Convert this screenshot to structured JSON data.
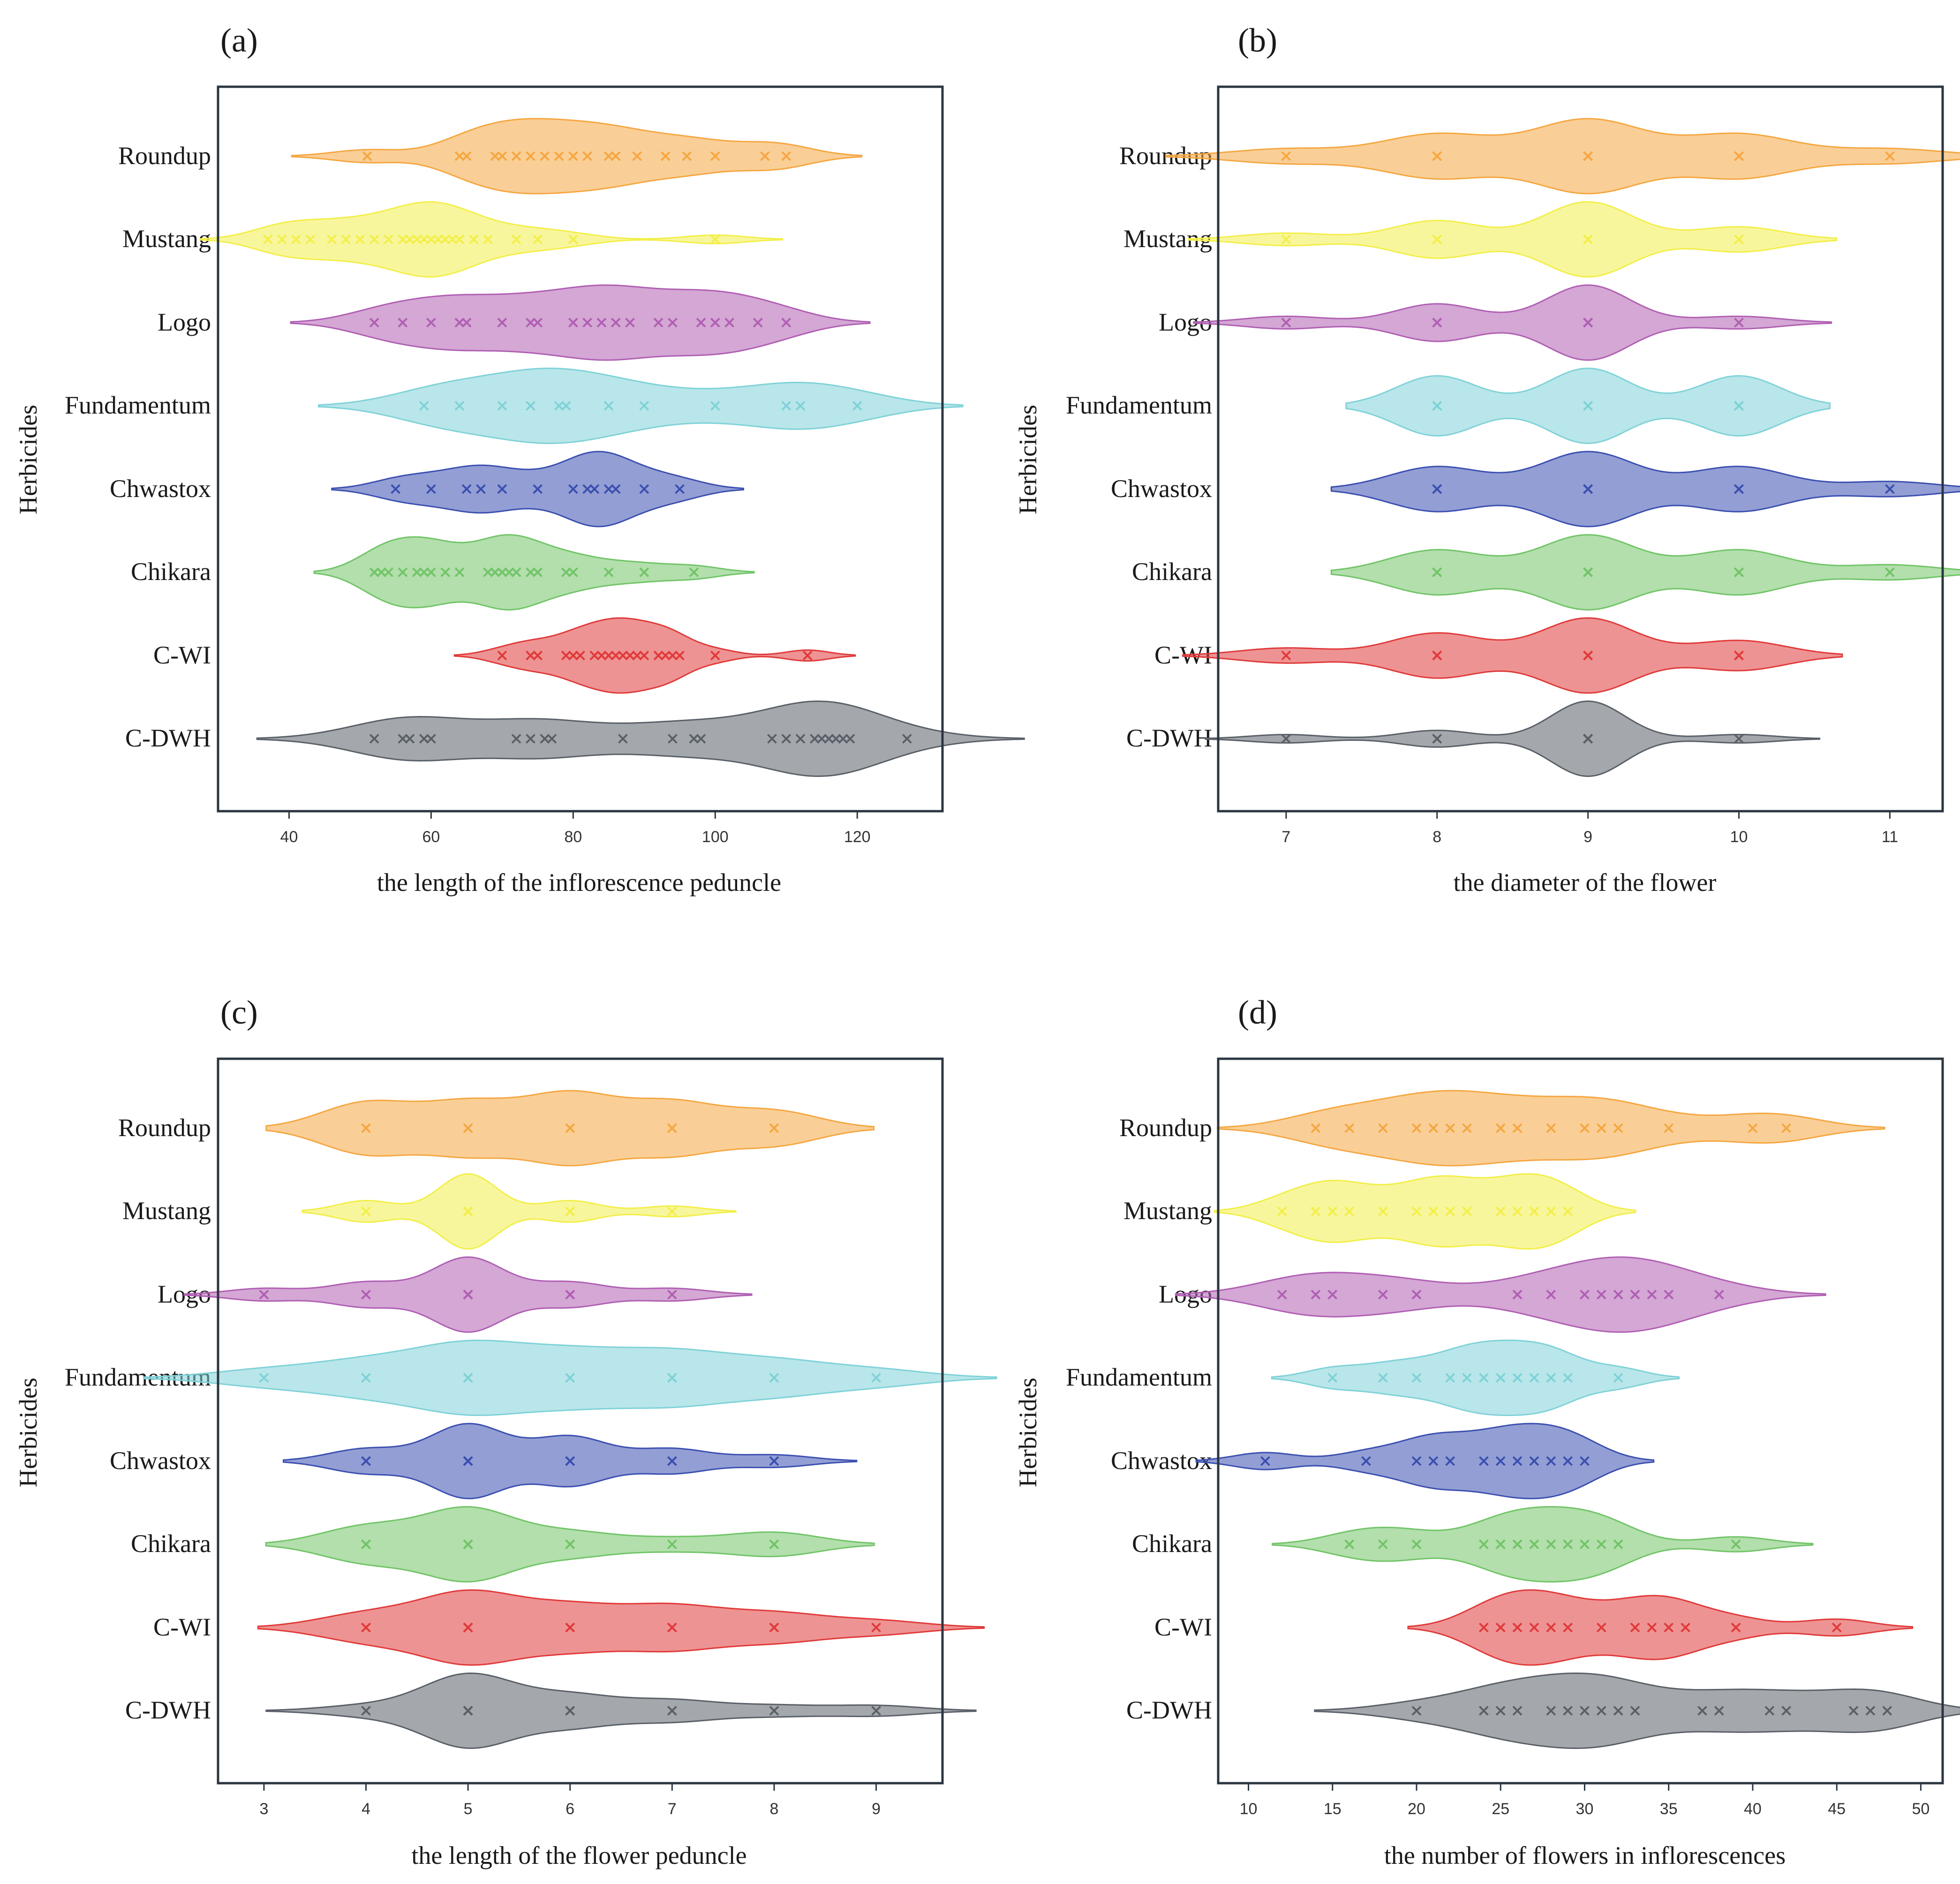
{
  "figure": {
    "categories": [
      "Roundup",
      "Mustang",
      "Logo",
      "Fundamentum",
      "Chwastox",
      "Chikara",
      "C-WI",
      "C-DWH"
    ],
    "colors": {
      "Roundup": "#f5a742",
      "Mustang": "#f2ef4a",
      "Logo": "#b05fb3",
      "Fundamentum": "#7fd2d8",
      "Chwastox": "#3b4fb0",
      "Chikara": "#72c468",
      "C-WI": "#e03a3a",
      "C-DWH": "#5a6068"
    }
  },
  "chart_data": [
    {
      "type": "violin",
      "id": "a",
      "panel_label": "(a)",
      "title": "",
      "xlabel": "the length of the inflorescence peduncle",
      "ylabel": "Herbicides",
      "xlim": [
        30,
        132
      ],
      "xticks": [
        40,
        60,
        80,
        100,
        120
      ],
      "marker": "x",
      "series": [
        {
          "name": "Roundup",
          "values": [
            51,
            64,
            65,
            69,
            70,
            72,
            74,
            76,
            78,
            80,
            82,
            85,
            86,
            89,
            93,
            96,
            100,
            107,
            110
          ]
        },
        {
          "name": "Mustang",
          "values": [
            37,
            39,
            41,
            43,
            46,
            48,
            50,
            52,
            54,
            56,
            57,
            58,
            59,
            60,
            61,
            62,
            63,
            64,
            66,
            68,
            72,
            75,
            80,
            100
          ]
        },
        {
          "name": "Logo",
          "values": [
            52,
            56,
            60,
            64,
            65,
            70,
            74,
            75,
            80,
            82,
            84,
            86,
            88,
            92,
            94,
            98,
            100,
            102,
            106,
            110
          ]
        },
        {
          "name": "Fundamentum",
          "values": [
            59,
            64,
            70,
            74,
            78,
            79,
            85,
            90,
            100,
            110,
            112,
            120
          ]
        },
        {
          "name": "Chwastox",
          "values": [
            55,
            60,
            65,
            67,
            70,
            75,
            80,
            82,
            83,
            85,
            86,
            90,
            95
          ]
        },
        {
          "name": "Chikara",
          "values": [
            52,
            53,
            54,
            56,
            58,
            59,
            60,
            62,
            64,
            68,
            69,
            70,
            71,
            72,
            74,
            75,
            79,
            80,
            85,
            90,
            97
          ]
        },
        {
          "name": "C-WI",
          "values": [
            70,
            74,
            75,
            79,
            80,
            81,
            83,
            84,
            85,
            86,
            87,
            88,
            89,
            90,
            92,
            93,
            94,
            95,
            100,
            113
          ]
        },
        {
          "name": "C-DWH",
          "values": [
            52,
            56,
            57,
            59,
            60,
            72,
            74,
            76,
            77,
            87,
            94,
            97,
            98,
            108,
            110,
            112,
            114,
            115,
            116,
            117,
            118,
            119,
            127
          ]
        }
      ]
    },
    {
      "type": "violin",
      "id": "b",
      "panel_label": "(b)",
      "title": "",
      "xlabel": "the diameter of the flower",
      "ylabel": "Herbicides",
      "xlim": [
        6.55,
        11.35
      ],
      "xticks": [
        7,
        8,
        9,
        10,
        11
      ],
      "marker": "x",
      "series": [
        {
          "name": "Roundup",
          "values": [
            7,
            8,
            8,
            8,
            9,
            9,
            9,
            9,
            9,
            10,
            10,
            10,
            11
          ]
        },
        {
          "name": "Mustang",
          "values": [
            7,
            8,
            8,
            8,
            9,
            9,
            9,
            9,
            9,
            9,
            10,
            10
          ]
        },
        {
          "name": "Logo",
          "values": [
            7,
            8,
            8,
            8,
            9,
            9,
            9,
            9,
            9,
            9,
            10
          ]
        },
        {
          "name": "Fundamentum",
          "values": [
            8,
            8,
            8,
            8,
            9,
            9,
            9,
            9,
            9,
            10,
            10,
            10,
            10
          ]
        },
        {
          "name": "Chwastox",
          "values": [
            8,
            8,
            8,
            9,
            9,
            9,
            9,
            9,
            10,
            10,
            10,
            11
          ]
        },
        {
          "name": "Chikara",
          "values": [
            8,
            8,
            8,
            9,
            9,
            9,
            9,
            9,
            10,
            10,
            10,
            11
          ]
        },
        {
          "name": "C-WI",
          "values": [
            7,
            8,
            8,
            8,
            9,
            9,
            9,
            9,
            9,
            10,
            10
          ]
        },
        {
          "name": "C-DWH",
          "values": [
            7,
            8,
            8,
            9,
            9,
            9,
            9,
            9,
            9,
            9,
            9,
            9,
            10
          ]
        }
      ]
    },
    {
      "type": "violin",
      "id": "c",
      "panel_label": "(c)",
      "title": "",
      "xlabel": "the length of the flower peduncle",
      "ylabel": "Herbicides",
      "xlim": [
        2.55,
        9.65
      ],
      "xticks": [
        3,
        4,
        5,
        6,
        7,
        8,
        9
      ],
      "marker": "x",
      "series": [
        {
          "name": "Roundup",
          "values": [
            4,
            4,
            4,
            5,
            5,
            5,
            6,
            6,
            6,
            6,
            7,
            7,
            7,
            8,
            8
          ]
        },
        {
          "name": "Mustang",
          "values": [
            4,
            4,
            5,
            5,
            5,
            5,
            5,
            5,
            5,
            6,
            6,
            7
          ]
        },
        {
          "name": "Logo",
          "values": [
            3,
            4,
            4,
            5,
            5,
            5,
            5,
            5,
            5,
            6,
            6,
            7
          ]
        },
        {
          "name": "Fundamentum",
          "values": [
            3,
            4,
            4,
            5,
            5,
            5,
            5,
            6,
            6,
            6,
            7,
            7,
            7,
            8,
            8,
            9
          ]
        },
        {
          "name": "Chwastox",
          "values": [
            4,
            4,
            5,
            5,
            5,
            5,
            5,
            5,
            6,
            6,
            6,
            6,
            7,
            7,
            8
          ]
        },
        {
          "name": "Chikara",
          "values": [
            4,
            4,
            4,
            5,
            5,
            5,
            5,
            5,
            5,
            6,
            6,
            7,
            8,
            8
          ]
        },
        {
          "name": "C-WI",
          "values": [
            4,
            4,
            5,
            5,
            5,
            5,
            5,
            6,
            6,
            6,
            7,
            7,
            7,
            8,
            8,
            9
          ]
        },
        {
          "name": "C-DWH",
          "values": [
            4,
            5,
            5,
            5,
            5,
            5,
            5,
            5,
            6,
            6,
            6,
            7,
            7,
            8,
            9
          ]
        }
      ]
    },
    {
      "type": "violin",
      "id": "d",
      "panel_label": "(d)",
      "title": "",
      "xlabel": "the number of flowers in inflorescences",
      "ylabel": "Herbicides",
      "xlim": [
        8.2,
        51.3
      ],
      "xticks": [
        10,
        15,
        20,
        25,
        30,
        35,
        40,
        45,
        50
      ],
      "marker": "x",
      "series": [
        {
          "name": "Roundup",
          "values": [
            14,
            16,
            18,
            20,
            21,
            22,
            23,
            25,
            26,
            28,
            30,
            31,
            32,
            35,
            40,
            42
          ]
        },
        {
          "name": "Mustang",
          "values": [
            12,
            14,
            15,
            16,
            18,
            20,
            21,
            22,
            23,
            25,
            26,
            27,
            28,
            29
          ]
        },
        {
          "name": "Logo",
          "values": [
            12,
            14,
            15,
            18,
            20,
            26,
            28,
            30,
            31,
            32,
            33,
            34,
            35,
            38
          ]
        },
        {
          "name": "Fundamentum",
          "values": [
            15,
            18,
            20,
            22,
            23,
            24,
            25,
            26,
            27,
            28,
            29,
            32
          ]
        },
        {
          "name": "Chwastox",
          "values": [
            11,
            17,
            20,
            21,
            22,
            24,
            25,
            26,
            27,
            28,
            29,
            30
          ]
        },
        {
          "name": "Chikara",
          "values": [
            16,
            18,
            20,
            24,
            25,
            26,
            27,
            28,
            29,
            30,
            31,
            32,
            39
          ]
        },
        {
          "name": "C-WI",
          "values": [
            24,
            25,
            26,
            27,
            28,
            29,
            31,
            33,
            34,
            35,
            36,
            39,
            45
          ]
        },
        {
          "name": "C-DWH",
          "values": [
            20,
            24,
            25,
            26,
            28,
            29,
            30,
            31,
            32,
            33,
            37,
            38,
            41,
            42,
            46,
            47,
            48
          ]
        }
      ]
    }
  ]
}
